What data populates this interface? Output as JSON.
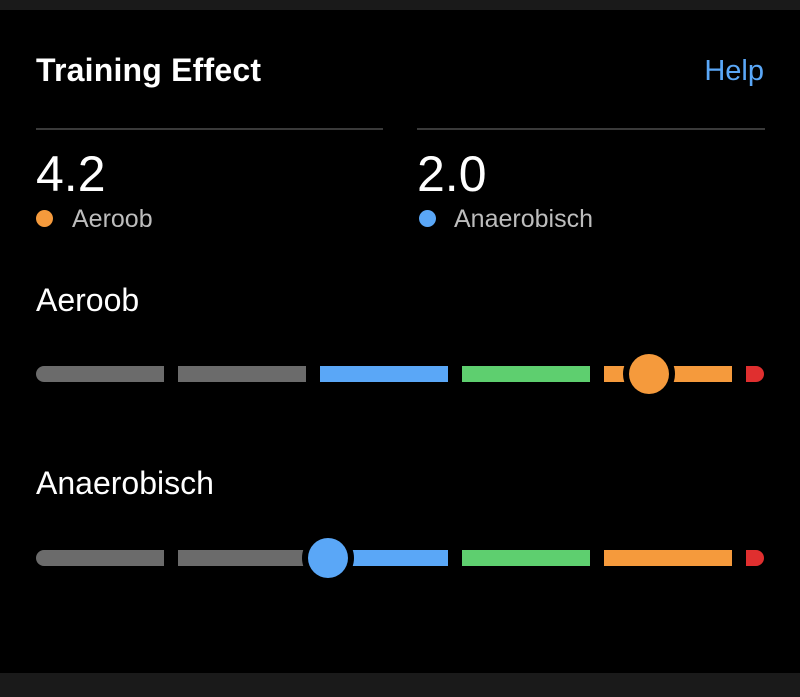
{
  "card": {
    "title": "Training Effect",
    "help_label": "Help"
  },
  "summary": [
    {
      "value": "4.2",
      "label": "Aeroob",
      "dot_color": "#f59a3c"
    },
    {
      "value": "2.0",
      "label": "Anaerobisch",
      "dot_color": "#5aa7f7"
    }
  ],
  "scales": {
    "aerobic": {
      "title": "Aeroob",
      "value": 4.2,
      "min": 0,
      "max": 5,
      "knob_color": "#f59a3c"
    },
    "anaerobic": {
      "title": "Anaerobisch",
      "value": 2.0,
      "min": 0,
      "max": 5,
      "knob_color": "#5aa7f7"
    }
  },
  "zone_colors": [
    "#6b6b6b",
    "#6b6b6b",
    "#5aa7f7",
    "#5ecf6f",
    "#f59a3c",
    "#e02f2f"
  ]
}
